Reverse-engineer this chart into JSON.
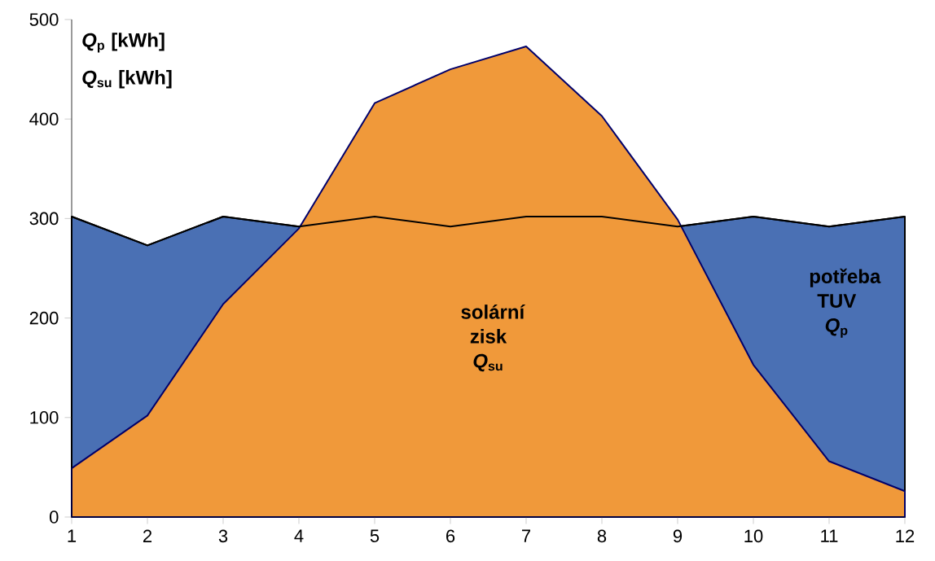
{
  "chart_data": {
    "type": "area",
    "categories": [
      "1",
      "2",
      "3",
      "4",
      "5",
      "6",
      "7",
      "8",
      "9",
      "10",
      "11",
      "12"
    ],
    "series": [
      {
        "name": "potřeba TUV *Q*$_{p}$",
        "color": "#4a70b4",
        "values": [
          302,
          273,
          302,
          292,
          302,
          292,
          302,
          302,
          292,
          302,
          292,
          302
        ]
      },
      {
        "name": "solární zisk *Q*$_{su}$",
        "color": "#f0993a",
        "values": [
          49,
          102,
          214,
          290,
          416,
          450,
          473,
          403,
          299,
          153,
          56,
          26
        ]
      }
    ],
    "ylim": [
      0,
      500
    ],
    "yticks": [
      0,
      100,
      200,
      300,
      400,
      500
    ],
    "grid": false,
    "legend": false,
    "annotations": [
      "*Q*$_{p}$ [kWh]",
      "*Q*$_{su}$ [kWh]"
    ]
  }
}
